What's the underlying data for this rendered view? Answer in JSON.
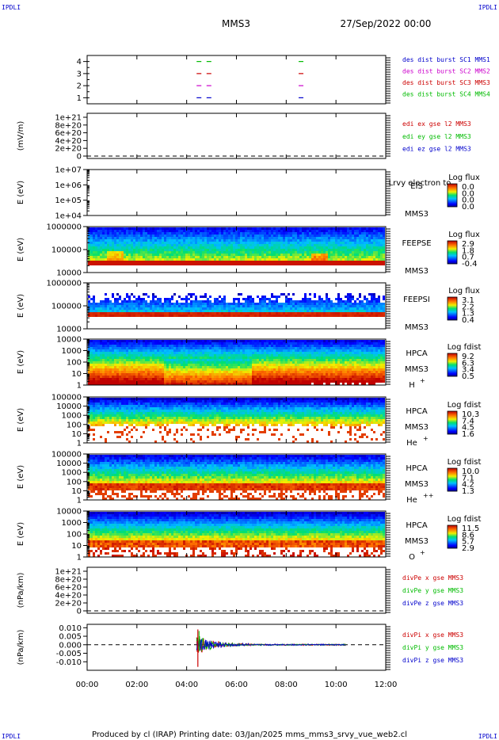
{
  "corner_labels": {
    "top_left": "IPDLI",
    "top_right": "IPDLI",
    "bottom_left": "IPDLI",
    "bottom_right": "IPDLI"
  },
  "header": {
    "mission": "MMS3",
    "datetime": "27/Sep/2022 00:00"
  },
  "footer": "Produced by cl (IRAP)   Printing date: 03/Jan/2025   mms_mms3_srvy_vue_web2.cl",
  "colors": {
    "blue": "#0000cc",
    "magenta": "#cc00cc",
    "red": "#cc0000",
    "green": "#00bb00"
  },
  "time_axis": {
    "ticks": [
      "00:00",
      "02:00",
      "04:00",
      "06:00",
      "08:00",
      "10:00",
      "12:00"
    ],
    "range_hours": [
      0,
      12
    ]
  },
  "chart_data": [
    {
      "type": "line",
      "panel": "des-dist",
      "ylim": [
        0.5,
        4.5
      ],
      "yticks": [
        "1",
        "2",
        "3",
        "4"
      ],
      "legend": [
        {
          "text": "des dist burst SC1 MMS1",
          "color": "#0000cc"
        },
        {
          "text": "des dist burst SC2 MMS2",
          "color": "#cc00cc"
        },
        {
          "text": "des dist burst SC3 MMS3",
          "color": "#cc0000"
        },
        {
          "text": "des dist burst SC4 MMS4",
          "color": "#00bb00"
        }
      ],
      "segments": [
        {
          "level": 4,
          "color": "#00bb00",
          "intervals": [
            [
              4.4,
              4.6
            ],
            [
              4.8,
              5.0
            ],
            [
              8.5,
              8.7
            ]
          ]
        },
        {
          "level": 3,
          "color": "#cc0000",
          "intervals": [
            [
              4.4,
              4.6
            ],
            [
              4.8,
              5.0
            ],
            [
              8.5,
              8.7
            ]
          ]
        },
        {
          "level": 2,
          "color": "#cc00cc",
          "intervals": [
            [
              4.4,
              4.6
            ],
            [
              4.8,
              5.0
            ],
            [
              8.5,
              8.7
            ]
          ]
        },
        {
          "level": 1,
          "color": "#0000cc",
          "intervals": [
            [
              4.4,
              4.6
            ],
            [
              4.8,
              5.0
            ],
            [
              8.5,
              8.7
            ]
          ]
        }
      ]
    },
    {
      "type": "line",
      "panel": "edi-e",
      "ylabel": "(mV/m)",
      "yticks": [
        "1e+21",
        "8e+20",
        "6e+20",
        "4e+20",
        "2e+20",
        "0"
      ],
      "legend": [
        {
          "text": "edi ex gse l2 MMS3",
          "color": "#cc0000"
        },
        {
          "text": "edi ey gse l2 MMS3",
          "color": "#00bb00"
        },
        {
          "text": "edi ez gse l2 MMS3",
          "color": "#0000cc"
        }
      ]
    },
    {
      "type": "heatmap",
      "panel": "eis",
      "ylabel": "E (eV)",
      "yticks": [
        "1e+07",
        "1e+06",
        "1e+05",
        "1e+04"
      ],
      "instrument": "EIS",
      "subtitle": "Lrvy electron to",
      "spacecraft": "MMS3",
      "colorbar_title": "Log flux",
      "colorbar_ticks": [
        "0.0",
        "0.0",
        "0.0",
        "0.0"
      ],
      "empty": true
    },
    {
      "type": "heatmap",
      "panel": "feepse",
      "ylabel": "E (eV)",
      "yticks": [
        "1000000",
        "100000",
        "10000"
      ],
      "instrument": "FEEPSE",
      "spacecraft": "MMS3",
      "colorbar_title": "Log flux",
      "colorbar_ticks": [
        "2.9",
        "1.8",
        "0.7",
        "-0.4"
      ]
    },
    {
      "type": "heatmap",
      "panel": "feepsi",
      "ylabel": "E (eV)",
      "yticks": [
        "1000000",
        "100000",
        "10000"
      ],
      "instrument": "FEEPSI",
      "spacecraft": "MMS3",
      "colorbar_title": "Log flux",
      "colorbar_ticks": [
        "3.1",
        "2.2",
        "1.3",
        "0.4"
      ]
    },
    {
      "type": "heatmap",
      "panel": "hpca-h",
      "ylabel": "E (eV)",
      "yticks": [
        "10000",
        "1000",
        "100",
        "10",
        "1"
      ],
      "instrument": "HPCA",
      "spacecraft": "MMS3",
      "species": "H",
      "charge": "+",
      "colorbar_title": "Log fdist",
      "colorbar_ticks": [
        "9.2",
        "6.3",
        "3.4",
        "0.5"
      ]
    },
    {
      "type": "heatmap",
      "panel": "hpca-he",
      "ylabel": "E (eV)",
      "yticks": [
        "100000",
        "10000",
        "1000",
        "100",
        "10",
        "1"
      ],
      "instrument": "HPCA",
      "spacecraft": "MMS3",
      "species": "He",
      "charge": "+",
      "colorbar_title": "Log fdist",
      "colorbar_ticks": [
        "10.3",
        "7.4",
        "4.5",
        "1.6"
      ]
    },
    {
      "type": "heatmap",
      "panel": "hpca-hepp",
      "ylabel": "E (eV)",
      "yticks": [
        "100000",
        "10000",
        "1000",
        "100",
        "10",
        "1"
      ],
      "instrument": "HPCA",
      "spacecraft": "MMS3",
      "species": "He",
      "charge": "++",
      "colorbar_title": "Log fdist",
      "colorbar_ticks": [
        "10.0",
        "7.1",
        "4.2",
        "1.3"
      ]
    },
    {
      "type": "heatmap",
      "panel": "hpca-o",
      "ylabel": "E (eV)",
      "yticks": [
        "10000",
        "1000",
        "100",
        "10",
        "1"
      ],
      "instrument": "HPCA",
      "spacecraft": "MMS3",
      "species": "O",
      "charge": "+",
      "colorbar_title": "Log fdist",
      "colorbar_ticks": [
        "11.5",
        "8.6",
        "5.7",
        "2.9"
      ]
    },
    {
      "type": "line",
      "panel": "divpe",
      "ylabel": "(nPa/km)",
      "yticks": [
        "1e+21",
        "8e+20",
        "6e+20",
        "4e+20",
        "2e+20",
        "0"
      ],
      "legend": [
        {
          "text": "divPe x gse MMS3",
          "color": "#cc0000"
        },
        {
          "text": "divPe y gse MMS3",
          "color": "#00bb00"
        },
        {
          "text": "divPe z gse MMS3",
          "color": "#0000cc"
        }
      ]
    },
    {
      "type": "line",
      "panel": "divpi",
      "ylabel": "(nPa/km)",
      "ylim": [
        -0.015,
        0.012
      ],
      "yticks": [
        {
          "label": "0.010",
          "v": 0.01
        },
        {
          "label": "0.005",
          "v": 0.005
        },
        {
          "label": "0.000",
          "v": 0
        },
        {
          "label": "-0.005",
          "v": -0.005
        },
        {
          "label": "-0.010",
          "v": -0.01
        }
      ],
      "legend": [
        {
          "text": "divPi x gse MMS3",
          "color": "#cc0000"
        },
        {
          "text": "divPi y gse MMS3",
          "color": "#00bb00"
        },
        {
          "text": "divPi z gse MMS3",
          "color": "#0000cc"
        }
      ],
      "activity_hours": [
        4.4,
        10.4
      ],
      "spike": {
        "t": 4.45,
        "min": -0.013,
        "max": 0.009
      }
    }
  ]
}
